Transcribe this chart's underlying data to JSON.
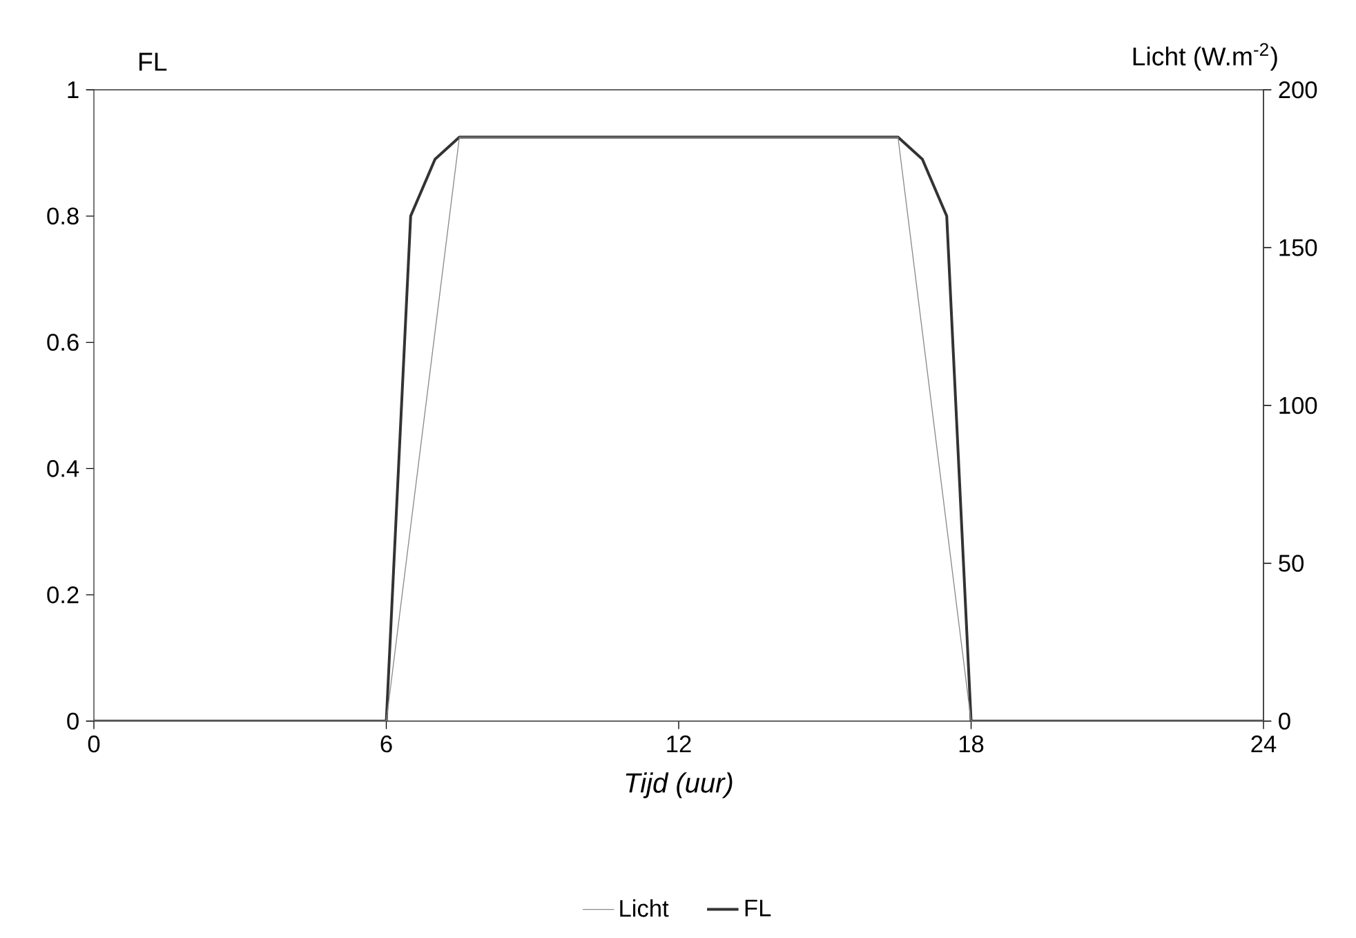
{
  "chart_data": {
    "type": "line",
    "xlabel": "Tijd (uur)",
    "ylabel": "FL",
    "y2label": "Licht (W.m$^{-2}$)",
    "xlim": [
      0,
      24
    ],
    "xticks": [
      0,
      6,
      12,
      18,
      24
    ],
    "ylim": [
      0,
      1
    ],
    "yticks": [
      0,
      0.2,
      0.4,
      0.6,
      0.8,
      1
    ],
    "y2lim": [
      0,
      200
    ],
    "y2ticks": [
      0,
      50,
      100,
      150,
      200
    ],
    "legend": "bottom",
    "marker": "none",
    "line_style": "solid",
    "series": [
      {
        "name": "Licht",
        "color": "#8a8a8a",
        "axis": "y2",
        "x": [
          0,
          6,
          7.5,
          16.5,
          18,
          24
        ],
        "values": [
          0,
          0,
          185,
          185,
          0,
          0
        ]
      },
      {
        "name": "FL",
        "color": "#333333",
        "x": [
          0,
          6,
          6.5,
          7,
          7.5,
          16.5,
          17,
          17.5,
          18,
          24
        ],
        "values": [
          0,
          0,
          0.8,
          0.89,
          0.925,
          0.925,
          0.89,
          0.8,
          0,
          0
        ]
      }
    ]
  }
}
